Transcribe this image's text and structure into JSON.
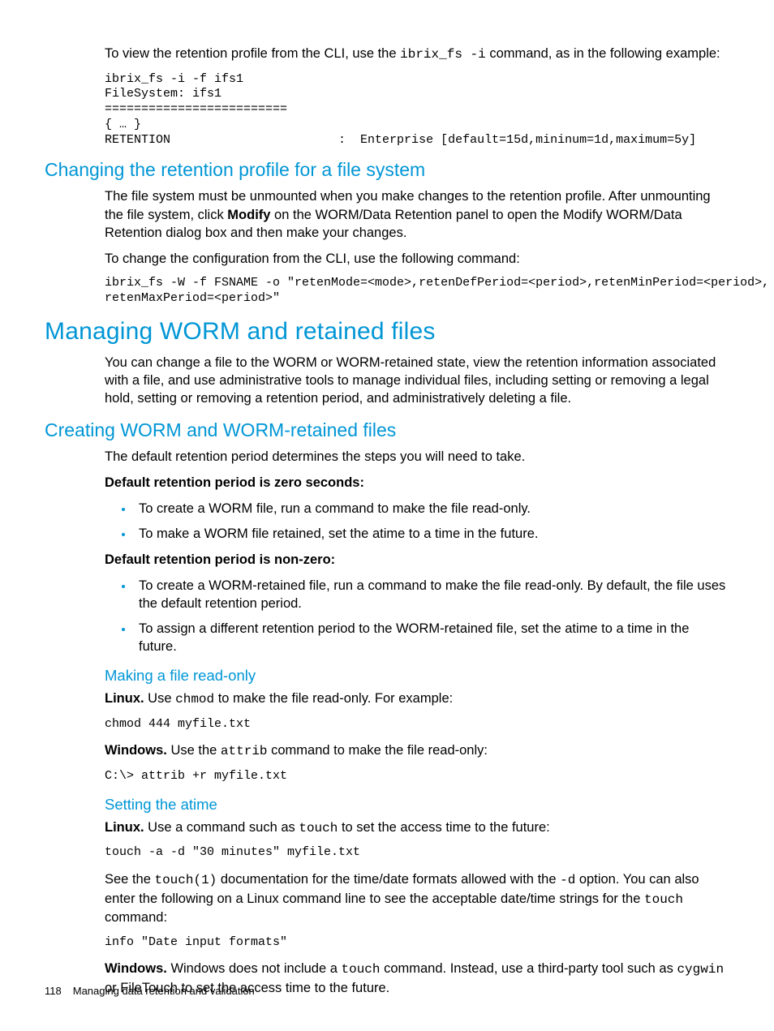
{
  "colors": {
    "heading": "#0096d6",
    "text": "#000000",
    "bullet": "#0096d6",
    "background": "#ffffff"
  },
  "typography": {
    "body_family": "Futura / Trebuchet-like sans-serif",
    "code_family": "Courier New",
    "body_size_pt": 12,
    "h1_size_pt": 22,
    "h2_size_pt": 17,
    "h3_size_pt": 14
  },
  "intro": {
    "p1_a": "To view the retention profile from the CLI, use the ",
    "p1_code": "ibrix_fs -i",
    "p1_b": " command, as in the following example:",
    "code_block": "ibrix_fs -i -f ifs1\nFileSystem: ifs1\n=========================\n{ … }\nRETENTION                       :  Enterprise [default=15d,mininum=1d,maximum=5y]"
  },
  "sec_change": {
    "title": "Changing the retention profile for a file system",
    "p1_a": "The file system must be unmounted when you make changes to the retention profile. After unmounting the file system, click ",
    "p1_bold": "Modify",
    "p1_b": " on the WORM/Data Retention panel to open the Modify WORM/Data Retention dialog box and then make your changes.",
    "p2": "To change the configuration from the CLI, use the following command:",
    "code": "ibrix_fs -W -f FSNAME -o \"retenMode=<mode>,retenDefPeriod=<period>,retenMinPeriod=<period>,\nretenMaxPeriod=<period>\""
  },
  "sec_manage": {
    "title": "Managing WORM and retained files",
    "p1": "You can change a file to the WORM or WORM-retained state, view the retention information associated with a file, and use administrative tools to manage individual files, including setting or removing a legal hold, setting or removing a retention period, and administratively deleting a file."
  },
  "sec_create": {
    "title": "Creating WORM and WORM-retained files",
    "p1": "The default retention period determines the steps you will need to take.",
    "sub1": "Default retention period is zero seconds:",
    "b1": "To create a WORM file, run a command to make the file read-only.",
    "b2": "To make a WORM file retained, set the atime to a time in the future.",
    "sub2": "Default retention period is non-zero:",
    "b3": "To create a WORM-retained file, run a command to make the file read-only. By default, the file uses the default retention period.",
    "b4": "To assign a different retention period to the WORM-retained file, set the atime to a time in the future."
  },
  "sec_readonly": {
    "title": "Making a file read-only",
    "linux_label": "Linux.",
    "linux_a": " Use ",
    "linux_code": "chmod",
    "linux_b": " to make the file read-only. For example:",
    "linux_block": "chmod 444 myfile.txt",
    "win_label": "Windows.",
    "win_a": "  Use the ",
    "win_code": "attrib",
    "win_b": " command to make the file read-only:",
    "win_block": "C:\\> attrib +r myfile.txt"
  },
  "sec_atime": {
    "title": "Setting the atime",
    "linux_label": "Linux.",
    "linux_a": " Use a command such as ",
    "linux_code": "touch",
    "linux_b": " to set the access time to the future:",
    "linux_block": "touch -a -d \"30 minutes\" myfile.txt",
    "p2_a": "See the ",
    "p2_code1": "touch(1)",
    "p2_b": " documentation for the time/date formats allowed with the ",
    "p2_code2": "-d",
    "p2_c": " option. You can also enter the following on a Linux command line to see the acceptable date/time strings for the ",
    "p2_code3": "touch",
    "p2_d": " command:",
    "info_block": "info \"Date input formats\"",
    "win_label": "Windows.",
    "win_a": " Windows does not include a ",
    "win_code": "touch",
    "win_b": " command. Instead, use a third-party tool such as ",
    "win_code2": "cygwin",
    "win_c": " or FileTouch to set the access time to the future."
  },
  "footer": {
    "page_number": "118",
    "chapter": "Managing data retention and validation"
  }
}
